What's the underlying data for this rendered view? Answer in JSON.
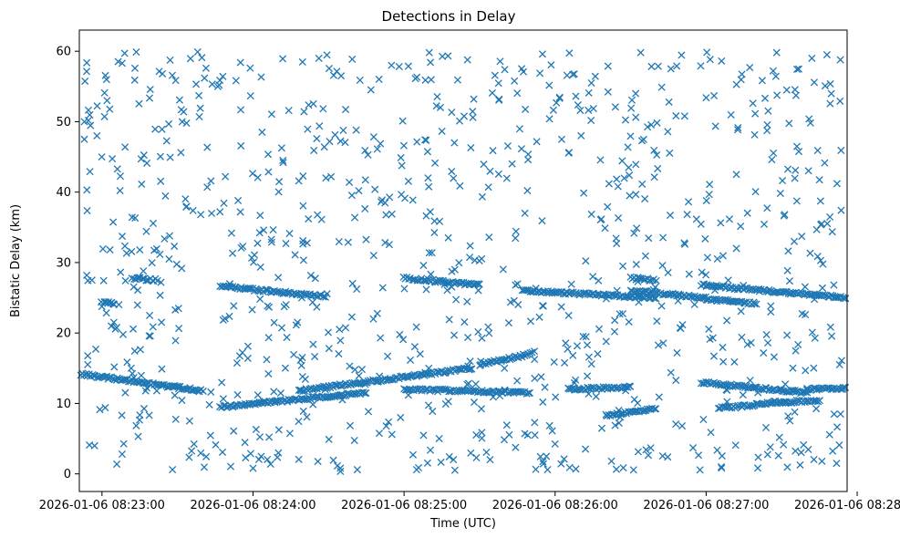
{
  "chart_data": {
    "type": "scatter",
    "title": "Detections in Delay",
    "xlabel": "Time (UTC)",
    "ylabel": "Bistatic Delay (km)",
    "marker": "x",
    "color": "#1f77b4",
    "grid": false,
    "legend": "none",
    "x_unit": "time of day (UTC), 2026-01-06",
    "xlim": [
      "2026-01-06 08:22:51",
      "2026-01-06 08:27:56"
    ],
    "ylim": [
      -2.5,
      63
    ],
    "x_ticks": [
      "2026-01-06 08:23:00",
      "2026-01-06 08:24:00",
      "2026-01-06 08:25:00",
      "2026-01-06 08:26:00",
      "2026-01-06 08:27:00",
      "2026-01-06 08:28:00"
    ],
    "y_ticks": [
      0,
      10,
      20,
      30,
      40,
      50,
      60
    ],
    "tracks": [
      {
        "x": [
          "08:22:51",
          "08:23:40"
        ],
        "y": [
          14.2,
          11.8
        ]
      },
      {
        "x": [
          "08:23:47",
          "08:24:45"
        ],
        "y": [
          9.5,
          11.5
        ]
      },
      {
        "x": [
          "08:23:47",
          "08:24:29"
        ],
        "y": [
          26.6,
          25.2
        ]
      },
      {
        "x": [
          "08:23:01",
          "08:23:05"
        ],
        "y": [
          24.4,
          24.2
        ]
      },
      {
        "x": [
          "08:23:12",
          "08:23:22"
        ],
        "y": [
          27.8,
          27.5
        ]
      },
      {
        "x": [
          "08:24:18",
          "08:25:27"
        ],
        "y": [
          11.8,
          15.0
        ]
      },
      {
        "x": [
          "08:25:00",
          "08:25:50"
        ],
        "y": [
          12.0,
          11.5
        ]
      },
      {
        "x": [
          "08:25:00",
          "08:25:30"
        ],
        "y": [
          27.8,
          26.8
        ]
      },
      {
        "x": [
          "08:25:30",
          "08:25:50"
        ],
        "y": [
          15.5,
          17.0
        ]
      },
      {
        "x": [
          "08:25:47",
          "08:26:40"
        ],
        "y": [
          26.0,
          25.0
        ]
      },
      {
        "x": [
          "08:26:05",
          "08:26:30"
        ],
        "y": [
          12.0,
          12.3
        ]
      },
      {
        "x": [
          "08:26:30",
          "08:27:00"
        ],
        "y": [
          26.0,
          25.0
        ]
      },
      {
        "x": [
          "08:26:30",
          "08:26:40"
        ],
        "y": [
          27.8,
          27.5
        ]
      },
      {
        "x": [
          "08:26:20",
          "08:26:40"
        ],
        "y": [
          8.3,
          9.2
        ]
      },
      {
        "x": [
          "08:26:58",
          "08:27:56"
        ],
        "y": [
          26.8,
          25.0
        ]
      },
      {
        "x": [
          "08:26:58",
          "08:27:40"
        ],
        "y": [
          13.0,
          11.5
        ]
      },
      {
        "x": [
          "08:27:00",
          "08:27:20"
        ],
        "y": [
          24.8,
          24.2
        ]
      },
      {
        "x": [
          "08:27:05",
          "08:27:20"
        ],
        "y": [
          9.3,
          9.8
        ]
      },
      {
        "x": [
          "08:27:20",
          "08:27:45"
        ],
        "y": [
          10.0,
          10.4
        ]
      },
      {
        "x": [
          "08:27:40",
          "08:27:56"
        ],
        "y": [
          12.0,
          12.2
        ]
      }
    ],
    "sampled_points": [
      {
        "x": "08:22:53",
        "y": 47.5
      },
      {
        "x": "08:22:53",
        "y": 50.0
      },
      {
        "x": "08:22:54",
        "y": 40.3
      },
      {
        "x": "08:22:55",
        "y": 4.1
      },
      {
        "x": "08:22:56",
        "y": 27.5
      },
      {
        "x": "08:22:58",
        "y": 48.0
      },
      {
        "x": "08:23:02",
        "y": 53.0
      },
      {
        "x": "08:23:08",
        "y": 58.3
      },
      {
        "x": "08:23:09",
        "y": 59.7
      },
      {
        "x": "08:23:08",
        "y": 2.8
      },
      {
        "x": "08:23:13",
        "y": 55.9
      },
      {
        "x": "08:23:15",
        "y": 31.8
      },
      {
        "x": "08:23:24",
        "y": 56.8
      },
      {
        "x": "08:23:28",
        "y": 0.6
      },
      {
        "x": "08:23:38",
        "y": 59.9
      },
      {
        "x": "08:23:46",
        "y": 55.0
      },
      {
        "x": "08:23:49",
        "y": 42.2
      },
      {
        "x": "08:23:55",
        "y": 58.4
      },
      {
        "x": "08:24:00",
        "y": 0.8
      },
      {
        "x": "08:24:12",
        "y": 44.2
      },
      {
        "x": "08:24:22",
        "y": 36.2
      },
      {
        "x": "08:24:35",
        "y": 56.5
      },
      {
        "x": "08:24:42",
        "y": 40.2
      },
      {
        "x": "08:24:55",
        "y": 58.0
      },
      {
        "x": "08:25:10",
        "y": 59.8
      },
      {
        "x": "08:25:05",
        "y": 0.6
      },
      {
        "x": "08:25:20",
        "y": 47.0
      },
      {
        "x": "08:25:40",
        "y": 57.4
      },
      {
        "x": "08:25:48",
        "y": 37.0
      },
      {
        "x": "08:25:55",
        "y": 59.6
      },
      {
        "x": "08:25:57",
        "y": 0.6
      },
      {
        "x": "08:26:10",
        "y": 51.6
      },
      {
        "x": "08:26:25",
        "y": 40.8
      },
      {
        "x": "08:26:34",
        "y": 59.8
      },
      {
        "x": "08:26:46",
        "y": 57.5
      },
      {
        "x": "08:27:00",
        "y": 53.4
      },
      {
        "x": "08:27:06",
        "y": 1.0
      },
      {
        "x": "08:27:12",
        "y": 42.5
      },
      {
        "x": "08:27:28",
        "y": 59.8
      },
      {
        "x": "08:27:35",
        "y": 33.0
      },
      {
        "x": "08:27:42",
        "y": 59.0
      },
      {
        "x": "08:27:46",
        "y": 1.8
      },
      {
        "x": "08:27:48",
        "y": 59.5
      },
      {
        "x": "08:27:52",
        "y": 41.2
      },
      {
        "x": "08:27:53",
        "y": 15.5
      }
    ]
  }
}
